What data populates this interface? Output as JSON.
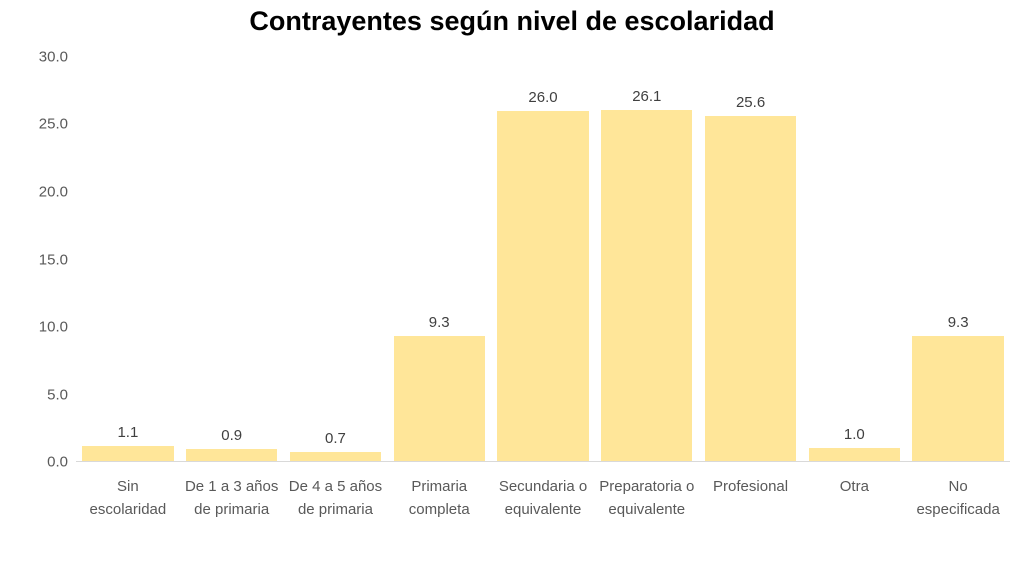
{
  "colors": {
    "bar_fill": "#FFE699",
    "axis_line": "#D9D9D9",
    "tick_text": "#595959",
    "category_text": "#595959",
    "value_label_text": "#404040",
    "title_text": "#000000",
    "background": "#FFFFFF"
  },
  "chart_data": {
    "type": "bar",
    "title": "Contrayentes según nivel de escolaridad",
    "xlabel": "",
    "ylabel": "",
    "categories": [
      "Sin escolaridad",
      "De 1 a 3 años de primaria",
      "De 4 a 5 años de primaria",
      "Primaria completa",
      "Secundaria o equivalente",
      "Preparatoria o equivalente",
      "Profesional",
      "Otra",
      "No especificada"
    ],
    "values": [
      1.1,
      0.9,
      0.7,
      9.3,
      26.0,
      26.1,
      25.6,
      1.0,
      9.3
    ],
    "value_labels": [
      "1.1",
      "0.9",
      "0.7",
      "9.3",
      "26.0",
      "26.1",
      "25.6",
      "1.0",
      "9.3"
    ],
    "ylim": [
      0,
      30
    ],
    "ytick_interval": 5,
    "ytick_labels_top_to_bottom": [
      "30.0",
      "25.0",
      "20.0",
      "15.0",
      "10.0",
      "5.0",
      "0.0"
    ],
    "grid": false,
    "legend": false,
    "data_labels_shown": true
  }
}
